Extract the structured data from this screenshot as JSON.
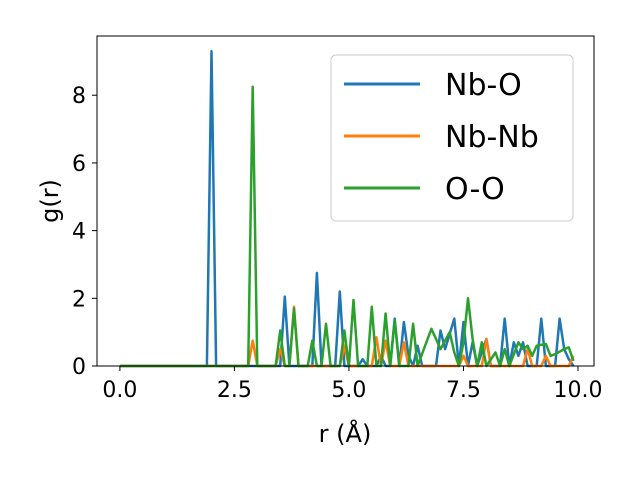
{
  "chart_data": {
    "type": "line",
    "xlabel": "r (Å)",
    "ylabel": "g(r)",
    "xlim": [
      -0.5,
      10.35
    ],
    "ylim": [
      0,
      9.75
    ],
    "xticks": [
      0.0,
      2.5,
      5.0,
      7.5,
      10.0
    ],
    "xtick_labels": [
      "0.0",
      "2.5",
      "5.0",
      "7.5",
      "10.0"
    ],
    "yticks": [
      0,
      2,
      4,
      6,
      8
    ],
    "ytick_labels": [
      "0",
      "2",
      "4",
      "6",
      "8"
    ],
    "grid": false,
    "legend_position": "upper right",
    "series": [
      {
        "name": "Nb-O",
        "color": "#1f77b4",
        "points": [
          [
            0.0,
            0
          ],
          [
            1.9,
            0
          ],
          [
            2.0,
            9.3
          ],
          [
            2.1,
            0
          ],
          [
            3.5,
            0
          ],
          [
            3.6,
            2.05
          ],
          [
            3.7,
            0
          ],
          [
            4.2,
            0
          ],
          [
            4.3,
            2.75
          ],
          [
            4.4,
            0
          ],
          [
            4.7,
            0
          ],
          [
            4.8,
            2.2
          ],
          [
            4.9,
            0
          ],
          [
            5.2,
            0
          ],
          [
            5.3,
            0.2
          ],
          [
            5.4,
            0
          ],
          [
            5.6,
            0
          ],
          [
            5.7,
            0.3
          ],
          [
            5.8,
            0
          ],
          [
            5.9,
            0
          ],
          [
            6.0,
            1.4
          ],
          [
            6.1,
            0
          ],
          [
            6.2,
            1.3
          ],
          [
            6.3,
            0.3
          ],
          [
            6.4,
            0
          ],
          [
            6.5,
            0.6
          ],
          [
            6.6,
            0
          ],
          [
            6.9,
            0
          ],
          [
            7.0,
            1.05
          ],
          [
            7.1,
            0.5
          ],
          [
            7.3,
            1.4
          ],
          [
            7.4,
            0
          ],
          [
            7.5,
            1.3
          ],
          [
            7.6,
            0
          ],
          [
            7.7,
            0.7
          ],
          [
            7.8,
            0
          ],
          [
            8.0,
            0.8
          ],
          [
            8.1,
            0
          ],
          [
            8.3,
            0
          ],
          [
            8.4,
            1.4
          ],
          [
            8.5,
            0
          ],
          [
            8.6,
            0.7
          ],
          [
            8.7,
            0.3
          ],
          [
            8.8,
            0.7
          ],
          [
            8.9,
            0
          ],
          [
            9.1,
            0
          ],
          [
            9.2,
            1.4
          ],
          [
            9.3,
            0
          ],
          [
            9.5,
            0
          ],
          [
            9.6,
            1.4
          ],
          [
            9.7,
            0.5
          ],
          [
            9.8,
            0.2
          ],
          [
            9.9,
            0
          ]
        ]
      },
      {
        "name": "Nb-Nb",
        "color": "#ff7f0e",
        "points": [
          [
            0.0,
            0
          ],
          [
            2.8,
            0
          ],
          [
            2.9,
            0.75
          ],
          [
            3.0,
            0
          ],
          [
            3.4,
            0
          ],
          [
            3.5,
            0.5
          ],
          [
            3.6,
            0
          ],
          [
            3.7,
            0
          ],
          [
            3.8,
            1.75
          ],
          [
            3.9,
            0
          ],
          [
            4.8,
            0
          ],
          [
            4.9,
            0.6
          ],
          [
            5.0,
            0
          ],
          [
            5.5,
            0
          ],
          [
            5.6,
            0.85
          ],
          [
            5.7,
            0
          ],
          [
            5.8,
            0.75
          ],
          [
            5.9,
            0
          ],
          [
            6.1,
            0
          ],
          [
            6.2,
            0.7
          ],
          [
            6.3,
            0
          ],
          [
            7.4,
            0
          ],
          [
            7.5,
            0.3
          ],
          [
            7.6,
            0
          ],
          [
            7.9,
            0
          ],
          [
            8.0,
            0.8
          ],
          [
            8.1,
            0
          ],
          [
            8.8,
            0
          ],
          [
            8.9,
            0.5
          ],
          [
            9.0,
            0
          ],
          [
            9.2,
            0
          ],
          [
            9.3,
            0.3
          ],
          [
            9.4,
            0
          ],
          [
            9.8,
            0
          ],
          [
            9.9,
            0.3
          ]
        ]
      },
      {
        "name": "O-O",
        "color": "#2ca02c",
        "points": [
          [
            0.0,
            0
          ],
          [
            2.8,
            0
          ],
          [
            2.9,
            8.25
          ],
          [
            3.0,
            0
          ],
          [
            3.4,
            0
          ],
          [
            3.5,
            1.05
          ],
          [
            3.6,
            0
          ],
          [
            3.7,
            0
          ],
          [
            3.8,
            1.7
          ],
          [
            3.9,
            0
          ],
          [
            4.1,
            0
          ],
          [
            4.2,
            0.75
          ],
          [
            4.3,
            0
          ],
          [
            4.4,
            0
          ],
          [
            4.5,
            1.25
          ],
          [
            4.6,
            0
          ],
          [
            4.8,
            0
          ],
          [
            4.9,
            1.05
          ],
          [
            5.0,
            0
          ],
          [
            5.1,
            1.95
          ],
          [
            5.2,
            0
          ],
          [
            5.4,
            0
          ],
          [
            5.5,
            1.75
          ],
          [
            5.6,
            0
          ],
          [
            5.7,
            0
          ],
          [
            5.8,
            1.55
          ],
          [
            5.9,
            0
          ],
          [
            6.0,
            1.35
          ],
          [
            6.1,
            0
          ],
          [
            6.3,
            0
          ],
          [
            6.4,
            1.25
          ],
          [
            6.5,
            0
          ],
          [
            6.8,
            1.1
          ],
          [
            6.9,
            0.8
          ],
          [
            7.0,
            0.5
          ],
          [
            7.2,
            1.0
          ],
          [
            7.3,
            0.4
          ],
          [
            7.4,
            0
          ],
          [
            7.5,
            0.7
          ],
          [
            7.6,
            2.0
          ],
          [
            7.7,
            0.8
          ],
          [
            7.8,
            0
          ],
          [
            7.9,
            0.7
          ],
          [
            8.0,
            0
          ],
          [
            8.2,
            0.4
          ],
          [
            8.3,
            0
          ],
          [
            8.4,
            0.5
          ],
          [
            8.5,
            0
          ],
          [
            8.7,
            0.7
          ],
          [
            8.8,
            0.5
          ],
          [
            8.9,
            0.6
          ],
          [
            9.0,
            0.3
          ],
          [
            9.1,
            0.6
          ],
          [
            9.3,
            0.65
          ],
          [
            9.4,
            0.3
          ],
          [
            9.5,
            0.35
          ],
          [
            9.7,
            0.5
          ],
          [
            9.8,
            0.55
          ],
          [
            9.9,
            0.15
          ]
        ]
      }
    ]
  }
}
